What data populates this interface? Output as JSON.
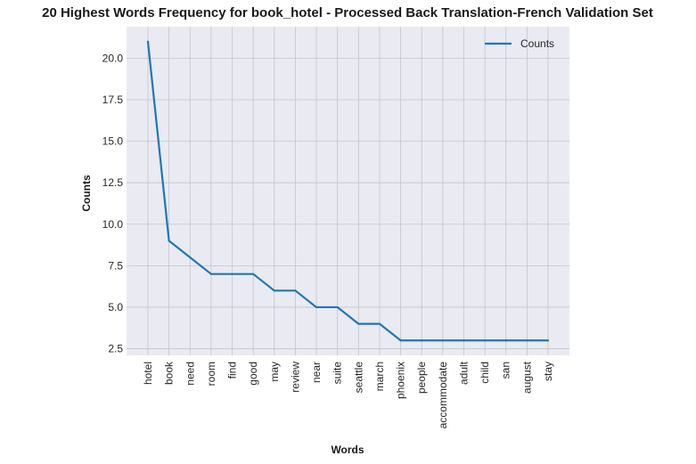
{
  "chart_data": {
    "type": "line",
    "title": "20 Highest Words Frequency for book_hotel - Processed Back Translation-French Validation Set",
    "xlabel": "Words",
    "ylabel": "Counts",
    "categories": [
      "hotel",
      "book",
      "need",
      "room",
      "find",
      "good",
      "may",
      "review",
      "near",
      "suite",
      "seattle",
      "march",
      "phoenix",
      "people",
      "accommodate",
      "adult",
      "child",
      "san",
      "august",
      "stay"
    ],
    "series": [
      {
        "name": "Counts",
        "values": [
          21,
          9,
          8,
          7,
          7,
          7,
          6,
          6,
          5,
          5,
          4,
          4,
          3,
          3,
          3,
          3,
          3,
          3,
          3,
          3
        ]
      }
    ],
    "ylim": [
      2.1,
      21.9
    ],
    "yticks": [
      "2.5",
      "5.0",
      "7.5",
      "10.0",
      "12.5",
      "15.0",
      "17.5",
      "20.0"
    ],
    "grid": true,
    "legend_position": "top-right",
    "colors": {
      "line": "#1f77b4",
      "plot_bg": "#eaeaf2",
      "grid": "#ffffff"
    }
  }
}
